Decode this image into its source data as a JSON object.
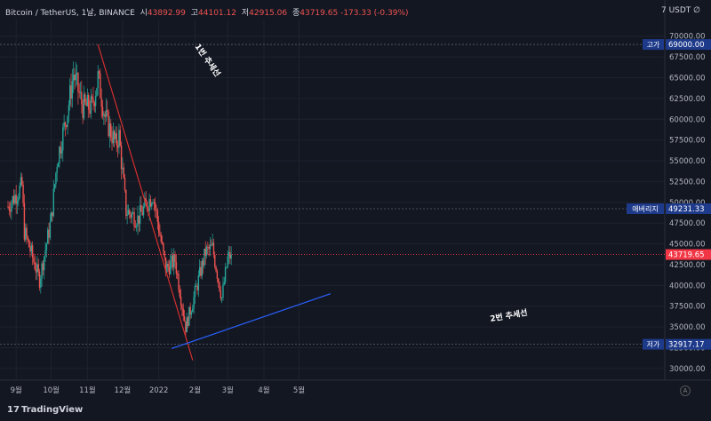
{
  "header": {
    "symbol": "Bitcoin / TetherUS, 1날, BINANCE",
    "open_label": "시",
    "open": "43892.99",
    "high_label": "고",
    "high": "44101.12",
    "low_label": "저",
    "low": "42915.06",
    "close_label": "종",
    "close": "43719.65",
    "change": "-173.33 (-0.39%)"
  },
  "currency": "7 USDT ∅",
  "brand": "TradingView",
  "brand_logo": "17",
  "colors": {
    "up": "#26a69a",
    "down": "#ef5350",
    "bg": "#131722",
    "text": "#b2b5be",
    "trend1": "#d32f2f",
    "trend2": "#2962ff",
    "price_label": "#f23645",
    "tag": "#1e3a8a"
  },
  "chart_data": {
    "type": "candlestick",
    "y_ticks": [
      30000,
      32500,
      35000,
      37500,
      40000,
      42500,
      45000,
      47500,
      50000,
      52500,
      55000,
      57500,
      60000,
      62500,
      65000,
      67500,
      70000
    ],
    "y_tick_labels": [
      "30000.00",
      "32500.00",
      "35000.00",
      "37500.00",
      "40000.00",
      "42500.00",
      "45000.00",
      "47500.00",
      "50000.00",
      "52500.00",
      "55000.00",
      "57500.00",
      "60000.00",
      "62500.00",
      "65000.00",
      "67500.00",
      "70000.00"
    ],
    "ylim": [
      28600,
      72000
    ],
    "x_tick_labels": [
      "9월",
      "10월",
      "11월",
      "12월",
      "2022",
      "2월",
      "3월",
      "4월",
      "5월"
    ],
    "horizontal_levels": [
      {
        "label": "고가",
        "value": 69000,
        "text": "69000.00"
      },
      {
        "label": "애버리지",
        "value": 49231.33,
        "text": "49231.33"
      },
      {
        "label": "저가",
        "value": 32917.17,
        "text": "32917.17"
      }
    ],
    "last_price": {
      "value": 43719.65,
      "text": "43719.65"
    },
    "annotations": [
      "1번 추세선",
      "2번 추세선"
    ],
    "trendlines": [
      {
        "name": "1번 추세선",
        "start": [
          "2021-11-10",
          69000
        ],
        "end": [
          "2022-01-30",
          31000
        ]
      },
      {
        "name": "2번 추세선",
        "start": [
          "2022-01-12",
          32400
        ],
        "end": [
          "2022-05-28",
          39000
        ]
      }
    ],
    "close_anchors": [
      [
        "2021-08-25",
        49500
      ],
      [
        "2021-09-06",
        52000
      ],
      [
        "2021-09-08",
        46500
      ],
      [
        "2021-09-21",
        40700
      ],
      [
        "2021-10-01",
        48000
      ],
      [
        "2021-10-06",
        55000
      ],
      [
        "2021-10-15",
        61000
      ],
      [
        "2021-10-20",
        65500
      ],
      [
        "2021-10-28",
        61500
      ],
      [
        "2021-11-05",
        61500
      ],
      [
        "2021-11-10",
        65000
      ],
      [
        "2021-11-16",
        60300
      ],
      [
        "2021-11-25",
        57000
      ],
      [
        "2021-11-28",
        58000
      ],
      [
        "2021-12-04",
        49000
      ],
      [
        "2021-12-14",
        48000
      ],
      [
        "2021-12-27",
        51000
      ],
      [
        "2022-01-07",
        42000
      ],
      [
        "2022-01-15",
        43000
      ],
      [
        "2022-01-24",
        35000
      ],
      [
        "2022-01-31",
        38500
      ],
      [
        "2022-02-10",
        44000
      ],
      [
        "2022-02-16",
        44500
      ],
      [
        "2022-02-24",
        38500
      ],
      [
        "2022-03-01",
        43200
      ],
      [
        "2022-03-04",
        43719.65
      ]
    ]
  }
}
